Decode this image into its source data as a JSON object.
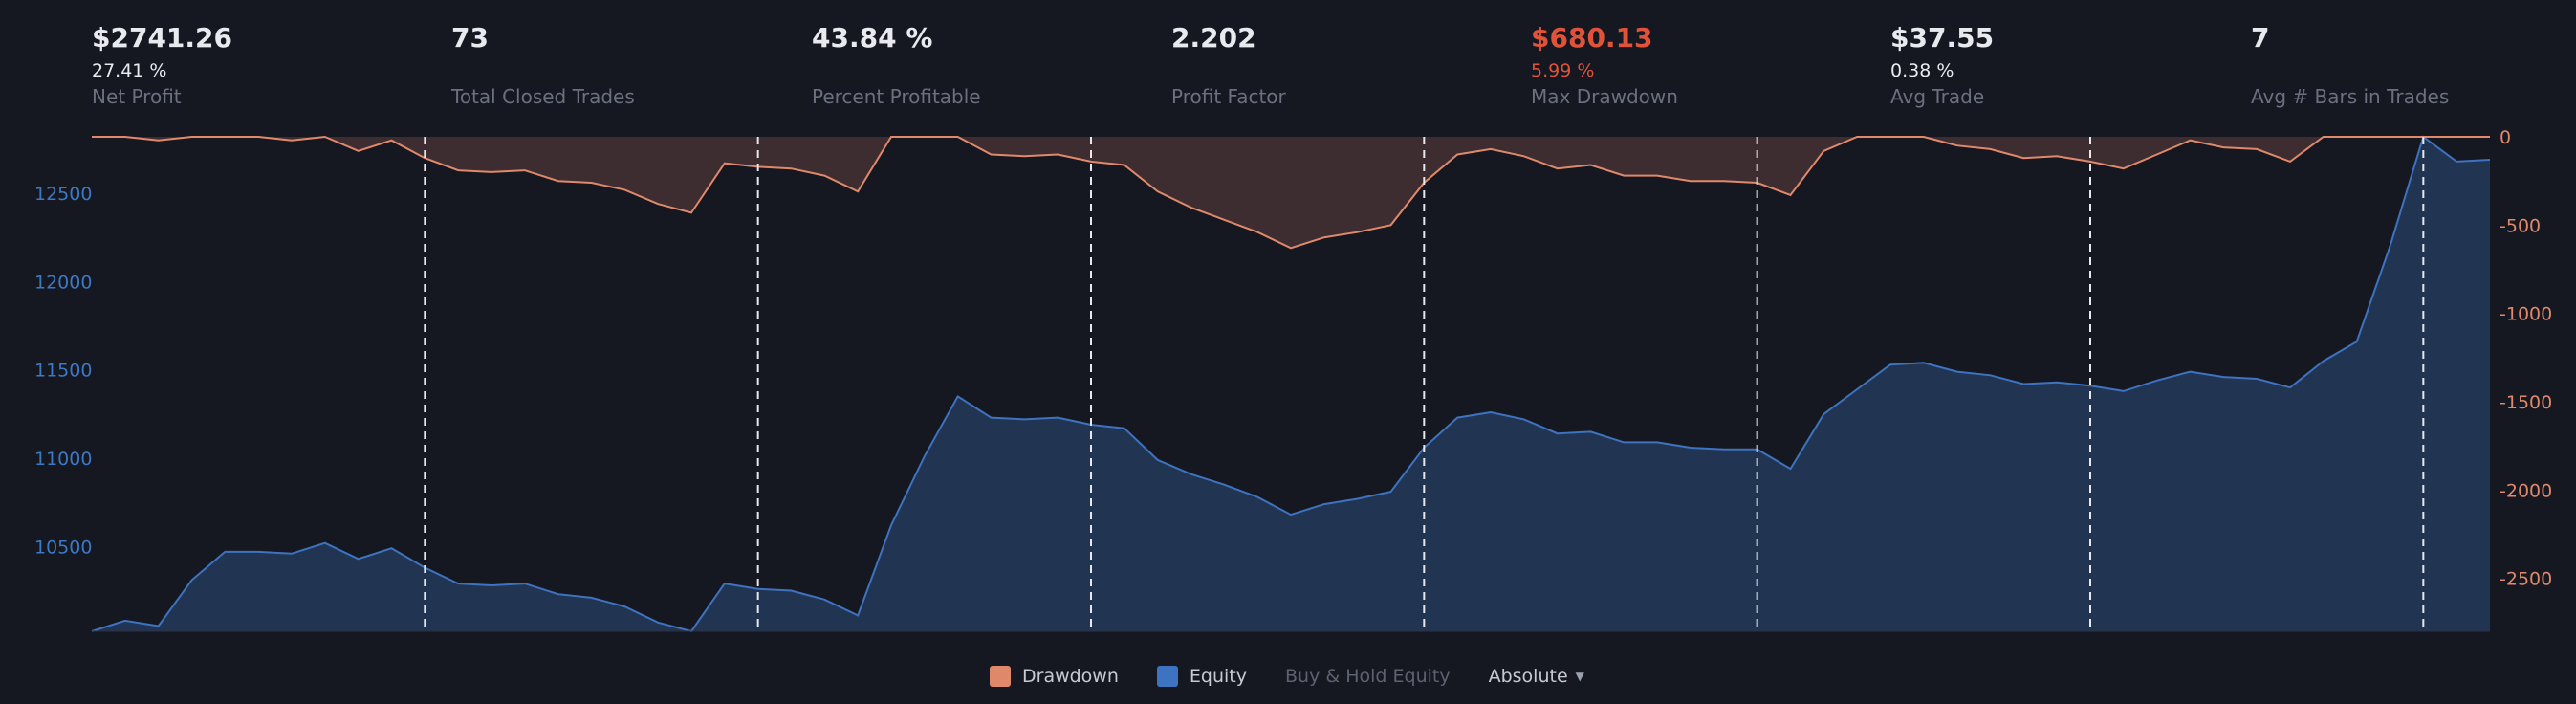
{
  "metrics": [
    {
      "value": "$2741.26",
      "sub": "27.41 %",
      "label": "Net Profit",
      "negative": false
    },
    {
      "value": "73",
      "sub": "",
      "label": "Total Closed Trades",
      "negative": false
    },
    {
      "value": "43.84 %",
      "sub": "",
      "label": "Percent Profitable",
      "negative": false
    },
    {
      "value": "2.202",
      "sub": "",
      "label": "Profit Factor",
      "negative": false
    },
    {
      "value": "$680.13",
      "sub": "5.99 %",
      "label": "Max Drawdown",
      "negative": true
    },
    {
      "value": "$37.55",
      "sub": "0.38 %",
      "label": "Avg Trade",
      "negative": false
    },
    {
      "value": "7",
      "sub": "",
      "label": "Avg # Bars in Trades",
      "negative": false
    }
  ],
  "legend": {
    "drawdown_label": "Drawdown",
    "equity_label": "Equity",
    "buyhold_label": "Buy & Hold Equity",
    "mode_label": "Absolute"
  },
  "colors": {
    "drawdown_line": "#e0896a",
    "drawdown_fill": "#3d2c30",
    "equity_line": "#3d73c0",
    "equity_fill": "#213452",
    "equity_axis": "#3c78c4",
    "drawdown_axis": "#e0896a",
    "negative": "#e0533a"
  },
  "chart_data": {
    "type": "area",
    "x": [
      0,
      1,
      2,
      3,
      4,
      5,
      6,
      7,
      8,
      9,
      10,
      11,
      12,
      13,
      14,
      15,
      16,
      17,
      18,
      19,
      20,
      21,
      22,
      23,
      24,
      25,
      26,
      27,
      28,
      29,
      30,
      31,
      32,
      33,
      34,
      35,
      36,
      37,
      38,
      39,
      40,
      41,
      42,
      43,
      44,
      45,
      46,
      47,
      48,
      49,
      50,
      51,
      52,
      53,
      54,
      55,
      56,
      57,
      58,
      59,
      60,
      61,
      62,
      63,
      64,
      65,
      66,
      67,
      68,
      69,
      70,
      71,
      72
    ],
    "x_ticks": [
      10,
      20,
      30,
      40,
      50,
      60,
      70
    ],
    "xlim": [
      0,
      72
    ],
    "vlines": [
      10,
      20,
      30,
      40,
      50,
      60,
      70
    ],
    "series": [
      {
        "name": "Equity",
        "axis": "left",
        "values": [
          10020,
          10080,
          10050,
          10310,
          10470,
          10470,
          10460,
          10520,
          10430,
          10490,
          10380,
          10290,
          10280,
          10290,
          10230,
          10210,
          10160,
          10070,
          10020,
          10290,
          10260,
          10250,
          10200,
          10110,
          10620,
          11010,
          11350,
          11230,
          11220,
          11230,
          11190,
          11170,
          10990,
          10910,
          10850,
          10780,
          10680,
          10740,
          10770,
          10810,
          11060,
          11230,
          11260,
          11220,
          11140,
          11150,
          11090,
          11090,
          11060,
          11050,
          11050,
          10940,
          11250,
          11390,
          11530,
          11540,
          11490,
          11470,
          11420,
          11430,
          11410,
          11380,
          11440,
          11490,
          11460,
          11450,
          11400,
          11550,
          11660,
          12200,
          12820,
          12680,
          12690
        ]
      },
      {
        "name": "Drawdown",
        "axis": "right",
        "values": [
          0,
          0,
          -20,
          0,
          0,
          0,
          -20,
          0,
          -80,
          -20,
          -120,
          -190,
          -200,
          -190,
          -250,
          -260,
          -300,
          -380,
          -430,
          -150,
          -170,
          -180,
          -220,
          -310,
          0,
          0,
          0,
          -100,
          -110,
          -100,
          -140,
          -160,
          -310,
          -400,
          -470,
          -540,
          -630,
          -570,
          -540,
          -500,
          -260,
          -100,
          -70,
          -110,
          -180,
          -160,
          -220,
          -220,
          -250,
          -250,
          -260,
          -330,
          -80,
          0,
          0,
          0,
          -50,
          -70,
          -120,
          -110,
          -140,
          -180,
          -100,
          -20,
          -60,
          -70,
          -140,
          0,
          0,
          0,
          0,
          0,
          0
        ]
      }
    ],
    "y_left": {
      "ticks": [
        10500,
        11000,
        11500,
        12000,
        12500
      ],
      "lim": [
        10020,
        12820
      ]
    },
    "y_right": {
      "ticks": [
        0,
        -500,
        -1000,
        -1500,
        -2000,
        -2500
      ],
      "lim": [
        -2800,
        0
      ]
    }
  }
}
